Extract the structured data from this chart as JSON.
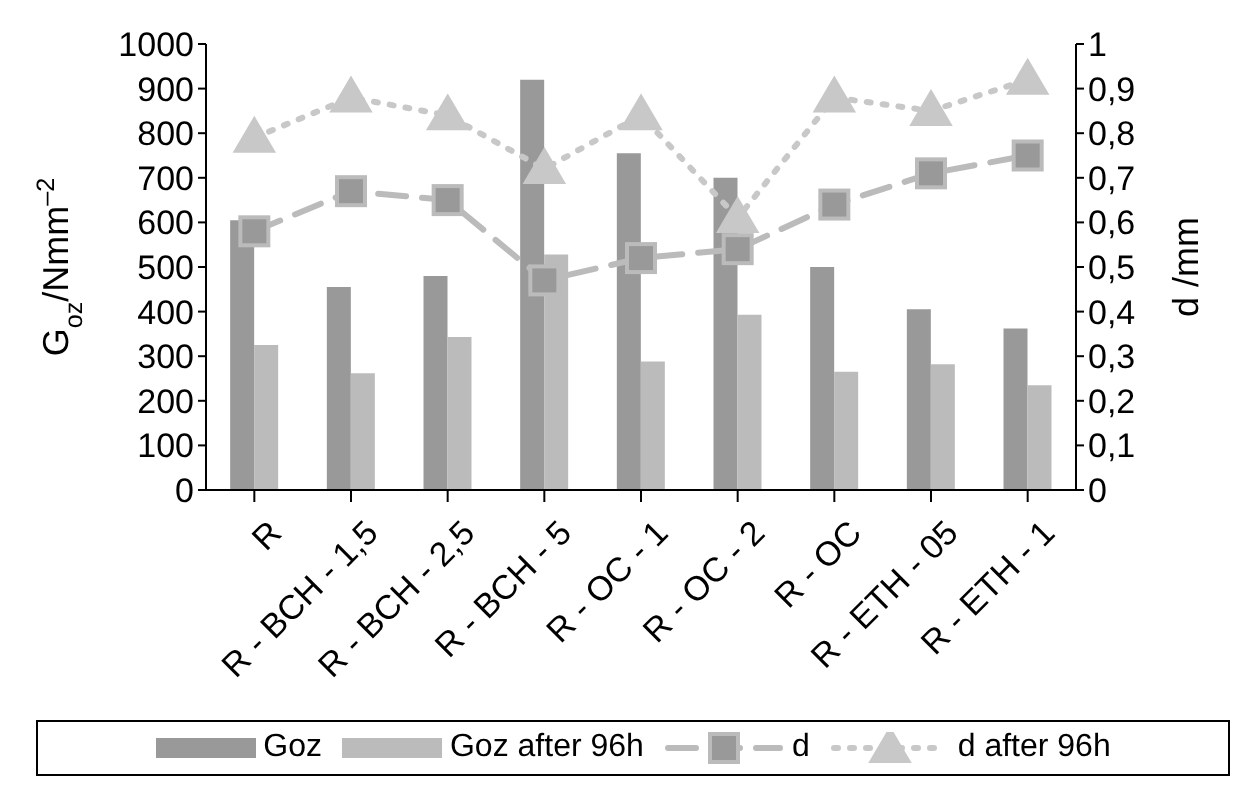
{
  "chart_data": {
    "type": "bar",
    "ylabel": "G$_{oz}$/Nmm$^{–2}$",
    "y2label": "d /mm",
    "categories": [
      "R",
      "R - BCH - 1,5",
      "R - BCH - 2,5",
      "R - BCH - 5",
      "R - OC - 1",
      "R - OC - 2",
      "R - OC",
      "R - ETH - 05",
      "R - ETH - 1"
    ],
    "series": [
      {
        "name": "Goz",
        "color": "#999999",
        "values": [
          605,
          455,
          480,
          920,
          755,
          700,
          500,
          405,
          362
        ]
      },
      {
        "name": "Goz after 96h",
        "color": "#bbbbbb",
        "values": [
          325,
          262,
          343,
          528,
          288,
          393,
          265,
          282,
          235
        ]
      },
      {
        "name": "d",
        "type": "line",
        "axis": "y2",
        "color": "#bbbbbb",
        "marker": "square",
        "line_style": "dashed",
        "values": [
          0.58,
          0.67,
          0.65,
          0.47,
          0.52,
          0.54,
          0.64,
          0.71,
          0.75
        ]
      },
      {
        "name": "d after 96h",
        "type": "line",
        "axis": "y2",
        "color": "#c8c8c8",
        "marker": "triangle",
        "line_style": "dotted",
        "values": [
          0.79,
          0.88,
          0.84,
          0.72,
          0.84,
          0.61,
          0.88,
          0.85,
          0.92
        ]
      }
    ],
    "ylim": [
      0,
      1000
    ],
    "yticks": [
      0,
      100,
      200,
      300,
      400,
      500,
      600,
      700,
      800,
      900,
      1000
    ],
    "y2lim": [
      0,
      1
    ],
    "y2ticks": [
      0,
      {
        "value": 0.1,
        "label": "0,1"
      },
      {
        "value": 0.2,
        "label": "0,2"
      },
      {
        "value": 0.3,
        "label": "0,3"
      },
      {
        "value": 0.4,
        "label": "0,4"
      },
      {
        "value": 0.5,
        "label": "0,5"
      },
      {
        "value": 0.6,
        "label": "0,6"
      },
      {
        "value": 0.7,
        "label": "0,7"
      },
      {
        "value": 0.8,
        "label": "0,8"
      },
      {
        "value": 0.9,
        "label": "0,9"
      },
      1
    ],
    "grid": false,
    "legend": "bottom"
  }
}
